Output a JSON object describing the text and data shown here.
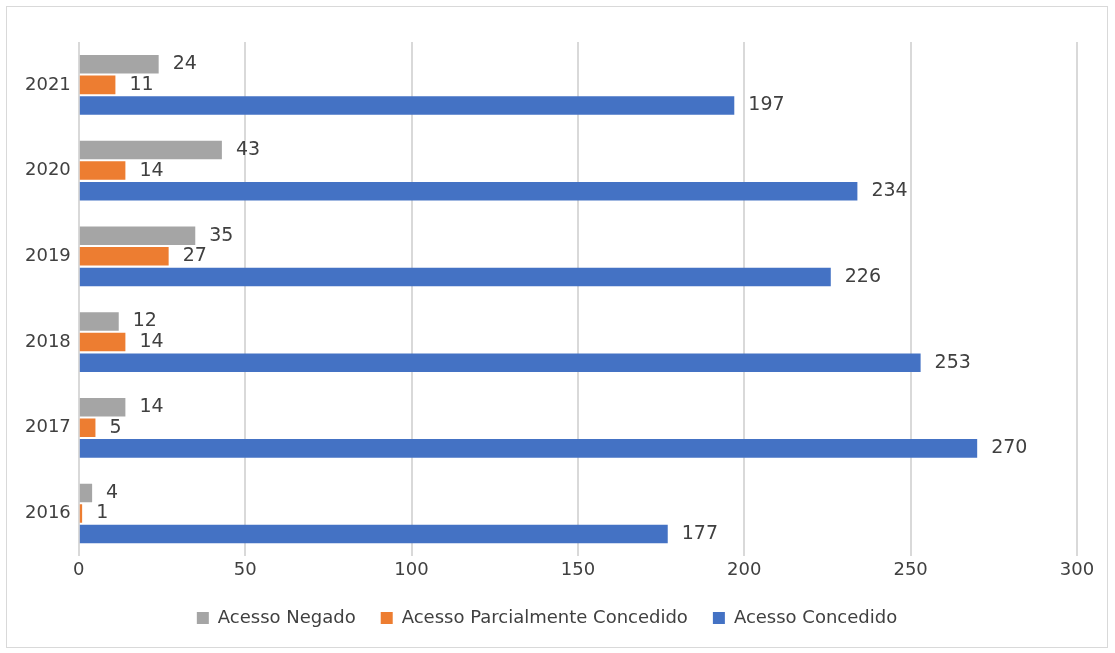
{
  "chart_data": {
    "type": "bar",
    "orientation": "horizontal",
    "categories": [
      "2021",
      "2020",
      "2019",
      "2018",
      "2017",
      "2016"
    ],
    "series": [
      {
        "name": "Acesso Negado",
        "color": "#a5a5a5",
        "values": [
          24,
          43,
          35,
          12,
          14,
          4
        ]
      },
      {
        "name": "Acesso Parcialmente Concedido",
        "color": "#ed7d31",
        "values": [
          11,
          14,
          27,
          14,
          5,
          1
        ]
      },
      {
        "name": "Acesso Concedido",
        "color": "#4472c4",
        "values": [
          197,
          234,
          226,
          253,
          270,
          177
        ]
      }
    ],
    "xlim": [
      0,
      300
    ],
    "xticks": [
      0,
      50,
      100,
      150,
      200,
      250,
      300
    ],
    "grid": "x",
    "legend": "bottom",
    "data_labels": true
  }
}
